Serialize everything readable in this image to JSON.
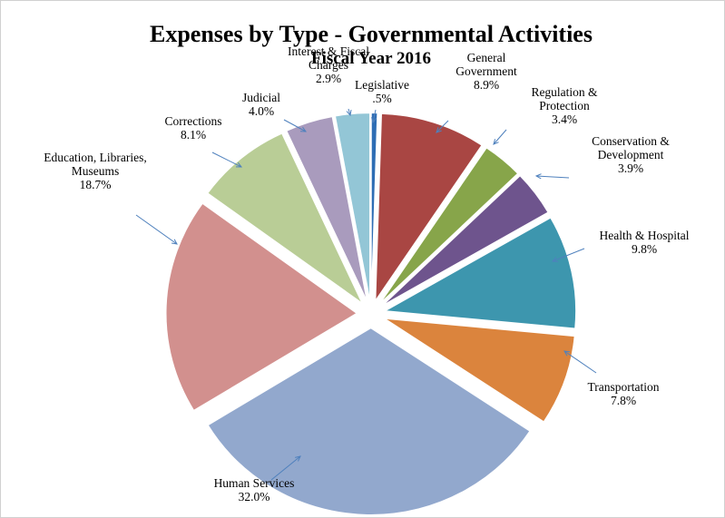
{
  "chart_data": {
    "type": "pie",
    "title": "Expenses by Type - Governmental Activities",
    "subtitle": "Fiscal Year 2016",
    "slices": [
      {
        "label": "Legislative",
        "value": 0.5,
        "value_label": ".5%",
        "color": "#2e6db4"
      },
      {
        "label": "General Government",
        "value": 8.9,
        "value_label": "8.9%",
        "color": "#a94643"
      },
      {
        "label": "Regulation & Protection",
        "value": 3.4,
        "value_label": "3.4%",
        "color": "#87a54a"
      },
      {
        "label": "Conservation & Development",
        "value": 3.9,
        "value_label": "3.9%",
        "color": "#6e548d"
      },
      {
        "label": "Health & Hospital",
        "value": 9.8,
        "value_label": "9.8%",
        "color": "#3d96ae"
      },
      {
        "label": "Transportation",
        "value": 7.8,
        "value_label": "7.8%",
        "color": "#db843d"
      },
      {
        "label": "Human Services",
        "value": 32.0,
        "value_label": "32.0%",
        "color": "#92a8cd"
      },
      {
        "label": "Education, Libraries, Museums",
        "value": 18.7,
        "value_label": "18.7%",
        "color": "#d2908e"
      },
      {
        "label": "Corrections",
        "value": 8.1,
        "value_label": "8.1%",
        "color": "#b9cd96"
      },
      {
        "label": "Judicial",
        "value": 4.0,
        "value_label": "4.0%",
        "color": "#a99bbd"
      },
      {
        "label": "Interest & Fiscal Charges",
        "value": 2.9,
        "value_label": "2.9%",
        "color": "#93c6d6"
      }
    ],
    "legend": "none"
  }
}
